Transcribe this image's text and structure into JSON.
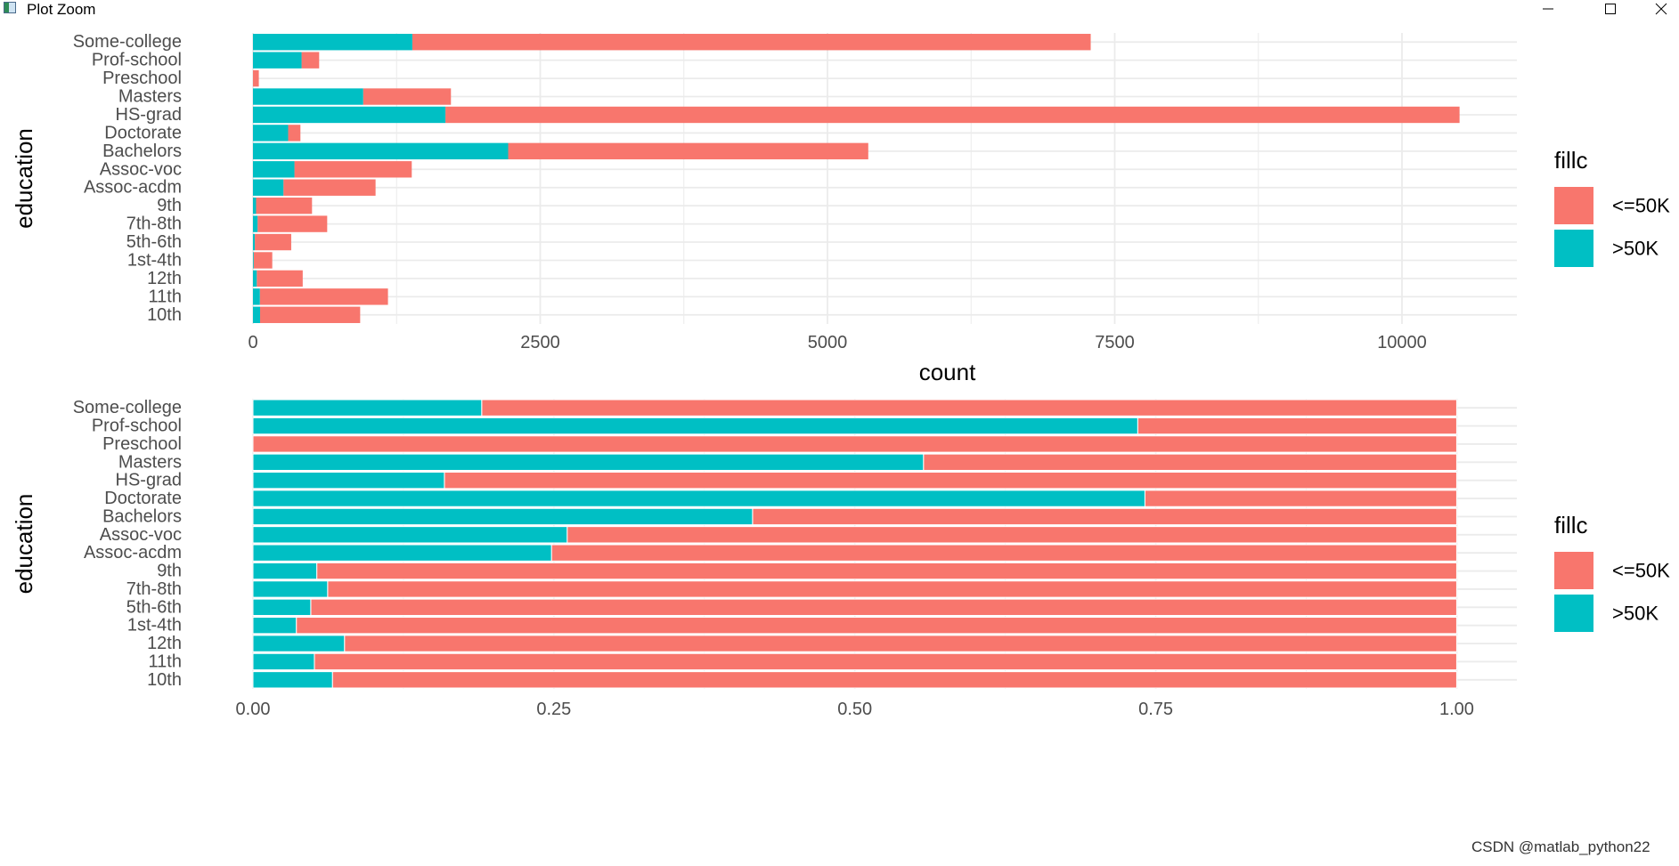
{
  "window": {
    "title": "Plot Zoom",
    "watermark": "CSDN @matlab_python22"
  },
  "colors": {
    "le50k": "#F8766D",
    "gt50k": "#00BFC4",
    "grid": "#ebebeb",
    "text": "#4d4d4d"
  },
  "chart_data": [
    {
      "type": "bar",
      "orientation": "horizontal",
      "stacked": true,
      "categories": [
        "Some-college",
        "Prof-school",
        "Preschool",
        "Masters",
        "HS-grad",
        "Doctorate",
        "Bachelors",
        "Assoc-voc",
        "Assoc-acdm",
        "9th",
        "7th-8th",
        "5th-6th",
        "1st-4th",
        "12th",
        "11th",
        "10th"
      ],
      "series": [
        {
          "name": ">50K",
          "values": [
            1387,
            423,
            0,
            959,
            1675,
            306,
            2221,
            361,
            265,
            27,
            40,
            16,
            6,
            33,
            60,
            62
          ]
        },
        {
          "name": "<=50K",
          "values": [
            5904,
            153,
            51,
            764,
            8826,
            107,
            3134,
            1021,
            802,
            487,
            606,
            317,
            162,
            400,
            1115,
            871
          ]
        }
      ],
      "xlabel": "count",
      "ylabel": "education",
      "xlim": [
        0,
        11000
      ],
      "xticks": [
        0,
        2500,
        5000,
        7500,
        10000
      ],
      "xtick_labels": [
        "0",
        "2500",
        "5000",
        "7500",
        "10000"
      ],
      "legend": {
        "title": "fillc",
        "entries": [
          "<=50K",
          ">50K"
        ],
        "position": "right"
      }
    },
    {
      "type": "bar",
      "orientation": "horizontal",
      "stacked": true,
      "position": "fill",
      "categories": [
        "Some-college",
        "Prof-school",
        "Preschool",
        "Masters",
        "HS-grad",
        "Doctorate",
        "Bachelors",
        "Assoc-voc",
        "Assoc-acdm",
        "9th",
        "7th-8th",
        "5th-6th",
        "1st-4th",
        "12th",
        "11th",
        "10th"
      ],
      "series": [
        {
          "name": ">50K",
          "values": [
            0.19,
            0.735,
            0.0,
            0.557,
            0.159,
            0.741,
            0.415,
            0.261,
            0.248,
            0.053,
            0.062,
            0.048,
            0.036,
            0.076,
            0.051,
            0.066
          ]
        },
        {
          "name": "<=50K",
          "values": [
            0.81,
            0.265,
            1.0,
            0.443,
            0.841,
            0.259,
            0.585,
            0.739,
            0.752,
            0.947,
            0.938,
            0.952,
            0.964,
            0.924,
            0.949,
            0.934
          ]
        }
      ],
      "xlabel": "",
      "ylabel": "education",
      "xlim": [
        0,
        1.05
      ],
      "xticks": [
        0,
        0.25,
        0.5,
        0.75,
        1.0
      ],
      "xtick_labels": [
        "0.00",
        "0.25",
        "0.50",
        "0.75",
        "1.00"
      ],
      "legend": {
        "title": "fillc",
        "entries": [
          "<=50K",
          ">50K"
        ],
        "position": "right"
      }
    }
  ]
}
